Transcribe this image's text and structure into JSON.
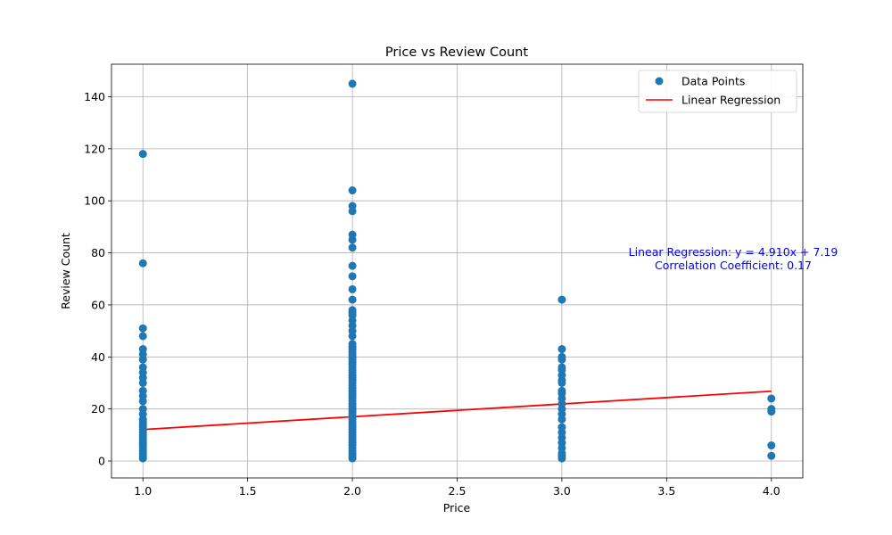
{
  "chart_data": {
    "type": "scatter",
    "title": "Price vs Review Count",
    "xlabel": "Price",
    "ylabel": "Review Count",
    "xlim": [
      0.85,
      4.15
    ],
    "ylim": [
      -6.5,
      152.5
    ],
    "xticks": [
      1.0,
      1.5,
      2.0,
      2.5,
      3.0,
      3.5,
      4.0
    ],
    "xtick_labels": [
      "1.0",
      "1.5",
      "2.0",
      "2.5",
      "3.0",
      "3.5",
      "4.0"
    ],
    "yticks": [
      0,
      20,
      40,
      60,
      80,
      100,
      120,
      140
    ],
    "ytick_labels": [
      "0",
      "20",
      "40",
      "60",
      "80",
      "100",
      "120",
      "140"
    ],
    "grid": true,
    "legend_position": "top-right",
    "series": [
      {
        "name": "Data Points",
        "kind": "scatter",
        "color": "#1f77b4",
        "points": [
          [
            1,
            1
          ],
          [
            1,
            2
          ],
          [
            1,
            3
          ],
          [
            1,
            4
          ],
          [
            1,
            5
          ],
          [
            1,
            6
          ],
          [
            1,
            7
          ],
          [
            1,
            8
          ],
          [
            1,
            9
          ],
          [
            1,
            10
          ],
          [
            1,
            11
          ],
          [
            1,
            12
          ],
          [
            1,
            13
          ],
          [
            1,
            14
          ],
          [
            1,
            15
          ],
          [
            1,
            16
          ],
          [
            1,
            18
          ],
          [
            1,
            20
          ],
          [
            1,
            23
          ],
          [
            1,
            25
          ],
          [
            1,
            27
          ],
          [
            1,
            30
          ],
          [
            1,
            32
          ],
          [
            1,
            34
          ],
          [
            1,
            36
          ],
          [
            1,
            39
          ],
          [
            1,
            41
          ],
          [
            1,
            43
          ],
          [
            1,
            48
          ],
          [
            1,
            51
          ],
          [
            1,
            76
          ],
          [
            1,
            118
          ],
          [
            2,
            1
          ],
          [
            2,
            2
          ],
          [
            2,
            3
          ],
          [
            2,
            4
          ],
          [
            2,
            5
          ],
          [
            2,
            6
          ],
          [
            2,
            7
          ],
          [
            2,
            8
          ],
          [
            2,
            9
          ],
          [
            2,
            10
          ],
          [
            2,
            11
          ],
          [
            2,
            12
          ],
          [
            2,
            13
          ],
          [
            2,
            14
          ],
          [
            2,
            15
          ],
          [
            2,
            16
          ],
          [
            2,
            17
          ],
          [
            2,
            18
          ],
          [
            2,
            19
          ],
          [
            2,
            20
          ],
          [
            2,
            21
          ],
          [
            2,
            22
          ],
          [
            2,
            23
          ],
          [
            2,
            24
          ],
          [
            2,
            25
          ],
          [
            2,
            26
          ],
          [
            2,
            27
          ],
          [
            2,
            28
          ],
          [
            2,
            29
          ],
          [
            2,
            30
          ],
          [
            2,
            31
          ],
          [
            2,
            32
          ],
          [
            2,
            33
          ],
          [
            2,
            34
          ],
          [
            2,
            35
          ],
          [
            2,
            36
          ],
          [
            2,
            37
          ],
          [
            2,
            38
          ],
          [
            2,
            39
          ],
          [
            2,
            40
          ],
          [
            2,
            41
          ],
          [
            2,
            42
          ],
          [
            2,
            43
          ],
          [
            2,
            44
          ],
          [
            2,
            45
          ],
          [
            2,
            48
          ],
          [
            2,
            50
          ],
          [
            2,
            52
          ],
          [
            2,
            54
          ],
          [
            2,
            56
          ],
          [
            2,
            57
          ],
          [
            2,
            58
          ],
          [
            2,
            62
          ],
          [
            2,
            66
          ],
          [
            2,
            71
          ],
          [
            2,
            75
          ],
          [
            2,
            82
          ],
          [
            2,
            85
          ],
          [
            2,
            87
          ],
          [
            2,
            96
          ],
          [
            2,
            98
          ],
          [
            2,
            104
          ],
          [
            2,
            145
          ],
          [
            3,
            1
          ],
          [
            3,
            2
          ],
          [
            3,
            3
          ],
          [
            3,
            5
          ],
          [
            3,
            7
          ],
          [
            3,
            9
          ],
          [
            3,
            11
          ],
          [
            3,
            13
          ],
          [
            3,
            16
          ],
          [
            3,
            18
          ],
          [
            3,
            20
          ],
          [
            3,
            22
          ],
          [
            3,
            24
          ],
          [
            3,
            26
          ],
          [
            3,
            27
          ],
          [
            3,
            30
          ],
          [
            3,
            31
          ],
          [
            3,
            33
          ],
          [
            3,
            35
          ],
          [
            3,
            36
          ],
          [
            3,
            39
          ],
          [
            3,
            40
          ],
          [
            3,
            43
          ],
          [
            3,
            62
          ],
          [
            4,
            2
          ],
          [
            4,
            6
          ],
          [
            4,
            19
          ],
          [
            4,
            20
          ],
          [
            4,
            24
          ]
        ]
      },
      {
        "name": "Linear Regression",
        "kind": "line",
        "color": "#ff0000",
        "slope": 4.91,
        "intercept": 7.19,
        "x_range": [
          1.0,
          4.0
        ]
      }
    ],
    "annotations": [
      "Linear Regression: y = 4.910x + 7.19",
      "Correlation Coefficient: 0.17"
    ]
  }
}
